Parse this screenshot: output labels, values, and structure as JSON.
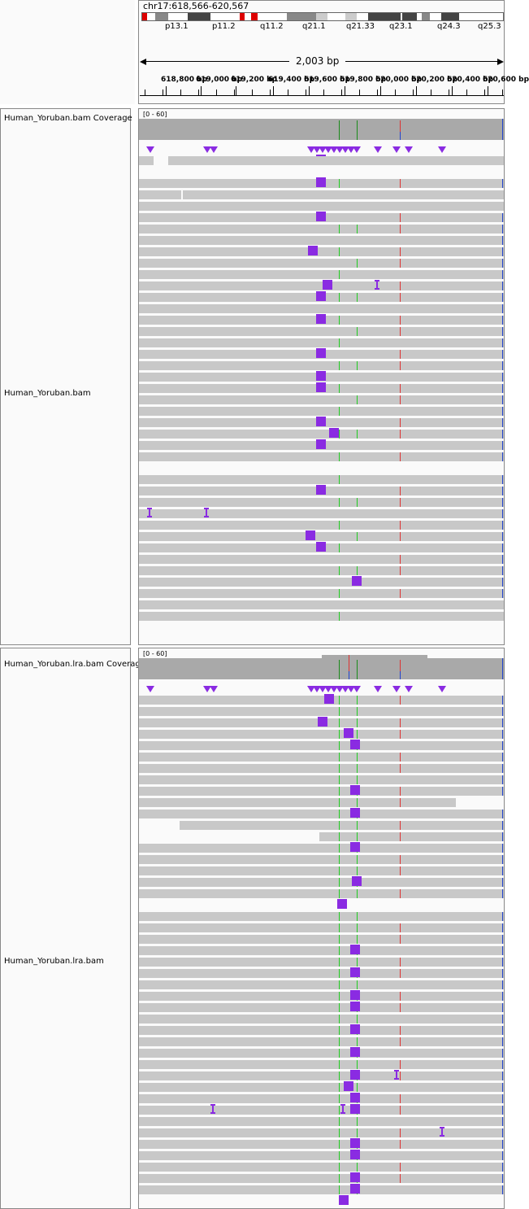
{
  "locus": "chr17:618,566-620,567",
  "span_label": "2,003 bp",
  "cytobands": [
    "p13.1",
    "p11.2",
    "q11.2",
    "q21.1",
    "q21.33",
    "q23.1",
    "q24.3",
    "q25.3"
  ],
  "ruler_labels": [
    "618,800 bp",
    "619,000 bp",
    "619,200 bp",
    "619,400 bp",
    "619,600 bp",
    "619,800 bp",
    "620,000 bp",
    "620,200 bp",
    "620,400 bp",
    "620,600 bp"
  ],
  "tracks": [
    {
      "coverage_label": "Human_Yoruban.bam Coverage",
      "range": "[0 - 60]",
      "reads_label": "Human_Yoruban.bam"
    },
    {
      "coverage_label": "Human_Yoruban.lra.bam Coverage",
      "range": "[0 - 60]",
      "reads_label": "Human_Yoruban.lra.bam"
    }
  ],
  "colors": {
    "read": "#c8c8c8",
    "insertion": "#8a2be2",
    "mismatch_green": "#22cc22",
    "mismatch_red": "#dd3333",
    "coverage": "#a9a9a9"
  }
}
